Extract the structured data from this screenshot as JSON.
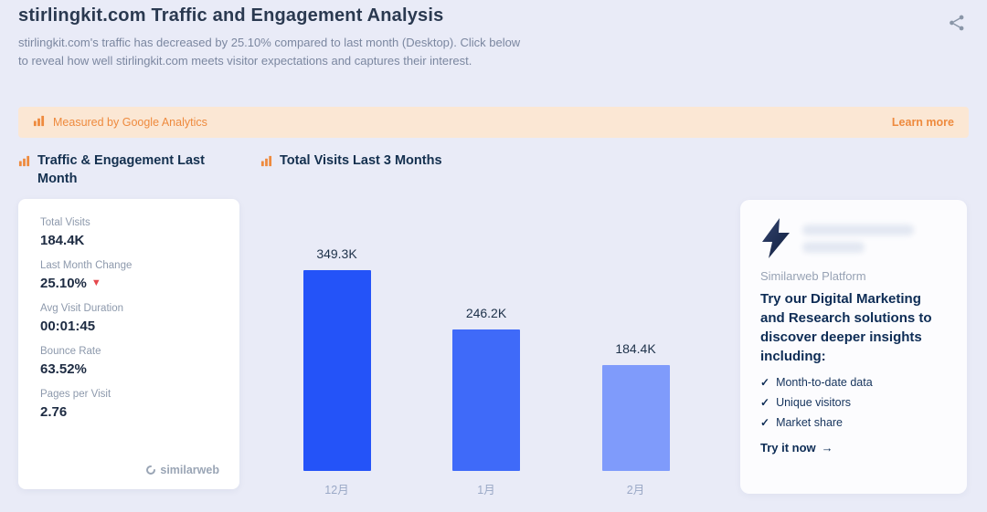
{
  "header": {
    "title": "stirlingkit.com Traffic and Engagement Analysis",
    "description": "stirlingkit.com's traffic has decreased by 25.10% compared to last month (Desktop). Click below to reveal how well stirlingkit.com meets visitor expectations and captures their interest."
  },
  "banner": {
    "text": "Measured by Google Analytics",
    "link_label": "Learn more"
  },
  "sections": {
    "left_title": "Traffic & Engagement Last Month",
    "right_title": "Total Visits Last 3 Months"
  },
  "stats_card": {
    "items": [
      {
        "label": "Total Visits",
        "value": "184.4K"
      },
      {
        "label": "Last Month Change",
        "value": "25.10%",
        "trend": "down"
      },
      {
        "label": "Avg Visit Duration",
        "value": "00:01:45"
      },
      {
        "label": "Bounce Rate",
        "value": "63.52%"
      },
      {
        "label": "Pages per Visit",
        "value": "2.76"
      }
    ],
    "logo_text": "similarweb"
  },
  "chart_data": {
    "type": "bar",
    "title": "Total Visits Last 3 Months",
    "categories": [
      "12月",
      "1月",
      "2月"
    ],
    "values": [
      349.3,
      246.2,
      184.4
    ],
    "unit": "K",
    "value_labels": [
      "349.3K",
      "246.2K",
      "184.4K"
    ],
    "bar_colors": [
      "#2453f8",
      "#3f6af9",
      "#7f9bfb"
    ],
    "xlabel": "",
    "ylabel": "",
    "ylim": [
      0,
      349.3
    ],
    "grid": false,
    "legend": "none"
  },
  "promo_card": {
    "platform_label": "Similarweb Platform",
    "headline": "Try our Digital Marketing and Research solutions to discover deeper insights including:",
    "bullets": [
      "Month-to-date data",
      "Unique visitors",
      "Market share"
    ],
    "cta_label": "Try it now"
  },
  "icons": {
    "check": "✓",
    "arrow_right": "→",
    "caret_down": "▼"
  },
  "colors": {
    "accent_orange": "#ee8a3e",
    "banner_bg": "#fbe7d4",
    "page_bg": "#e9ebf7",
    "negative_red": "#e5484d",
    "heading_navy": "#0d2c55"
  }
}
